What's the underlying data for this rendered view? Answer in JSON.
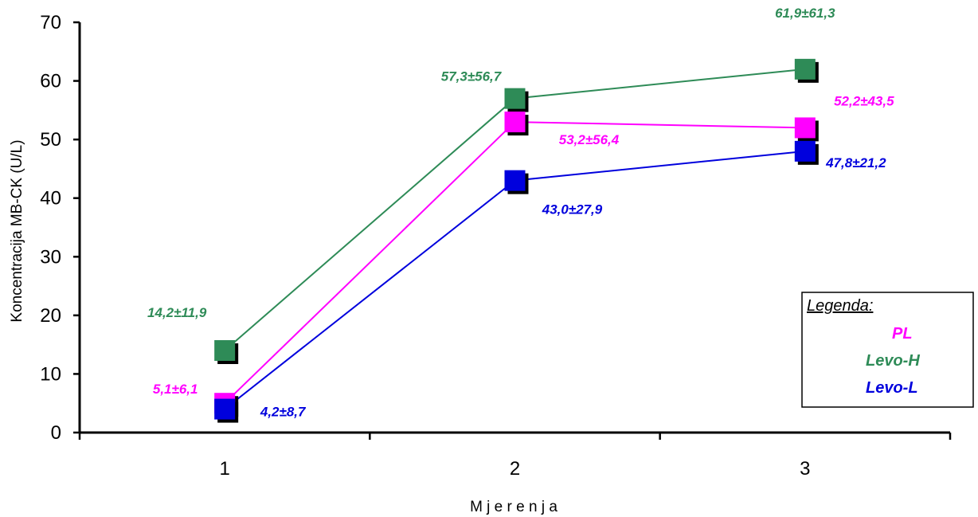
{
  "chart_data": {
    "type": "line",
    "categories": [
      "1",
      "2",
      "3"
    ],
    "xlabel": "M j e r e n j a",
    "ylabel": "Koncentracija MB-CK (U/L)",
    "ylim": [
      0,
      70
    ],
    "yticks": [
      "0",
      "10",
      "20",
      "30",
      "40",
      "50",
      "60",
      "70"
    ],
    "grid": false,
    "legend": {
      "title": "Legenda:",
      "placement": "right",
      "items": [
        "PL",
        "Levo-H",
        "Levo-L"
      ]
    },
    "series": [
      {
        "name": "Levo-H",
        "color": "#2e8b57",
        "values": [
          14,
          57,
          62
        ],
        "labels": [
          "14,2±11,9",
          "57,3±56,7",
          "61,9±61,3"
        ]
      },
      {
        "name": "PL",
        "color": "#ff00ff",
        "values": [
          5,
          53,
          52
        ],
        "labels": [
          "5,1±6,1",
          "53,2±56,4",
          "52,2±43,5"
        ]
      },
      {
        "name": "Levo-L",
        "color": "#0000dd",
        "values": [
          4,
          43,
          48
        ],
        "labels": [
          "4,2±8,7",
          "43,0±27,9",
          "47,8±21,2"
        ]
      }
    ]
  },
  "colors": {
    "legend_pl": "#ff00ff",
    "legend_levo_h": "#2e8b57",
    "legend_levo_l": "#0000dd"
  }
}
